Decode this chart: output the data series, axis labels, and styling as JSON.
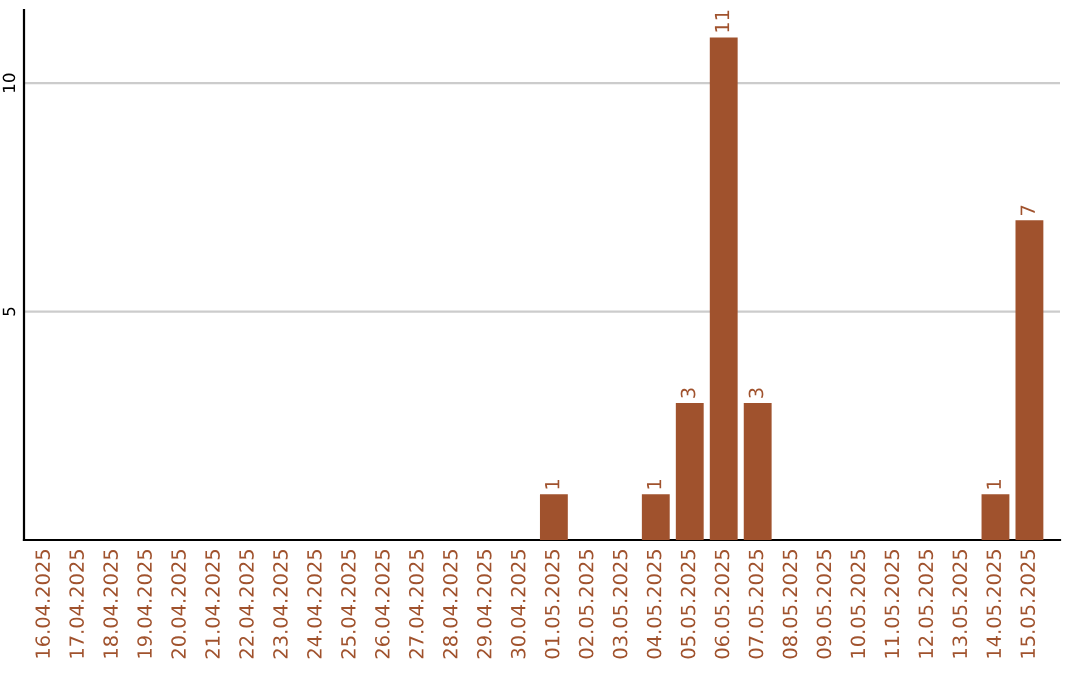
{
  "chart_data": {
    "type": "bar",
    "categories": [
      "16.04.2025",
      "17.04.2025",
      "18.04.2025",
      "19.04.2025",
      "20.04.2025",
      "21.04.2025",
      "22.04.2025",
      "23.04.2025",
      "24.04.2025",
      "25.04.2025",
      "26.04.2025",
      "27.04.2025",
      "28.04.2025",
      "29.04.2025",
      "30.04.2025",
      "01.05.2025",
      "02.05.2025",
      "03.05.2025",
      "04.05.2025",
      "05.05.2025",
      "06.05.2025",
      "07.05.2025",
      "08.05.2025",
      "09.05.2025",
      "10.05.2025",
      "11.05.2025",
      "12.05.2025",
      "13.05.2025",
      "14.05.2025",
      "15.05.2025"
    ],
    "values": [
      0,
      0,
      0,
      0,
      0,
      0,
      0,
      0,
      0,
      0,
      0,
      0,
      0,
      0,
      0,
      1,
      0,
      0,
      1,
      3,
      11,
      3,
      0,
      0,
      0,
      0,
      0,
      0,
      1,
      7
    ],
    "value_labels": [
      null,
      null,
      null,
      null,
      null,
      null,
      null,
      null,
      null,
      null,
      null,
      null,
      null,
      null,
      null,
      "1",
      null,
      null,
      "1",
      "3",
      "11",
      "3",
      null,
      null,
      null,
      null,
      null,
      null,
      "1",
      "7"
    ],
    "color": "#a0522d",
    "ylim": [
      0,
      11.6
    ],
    "yticks": [
      5,
      10
    ],
    "grid": "y"
  }
}
